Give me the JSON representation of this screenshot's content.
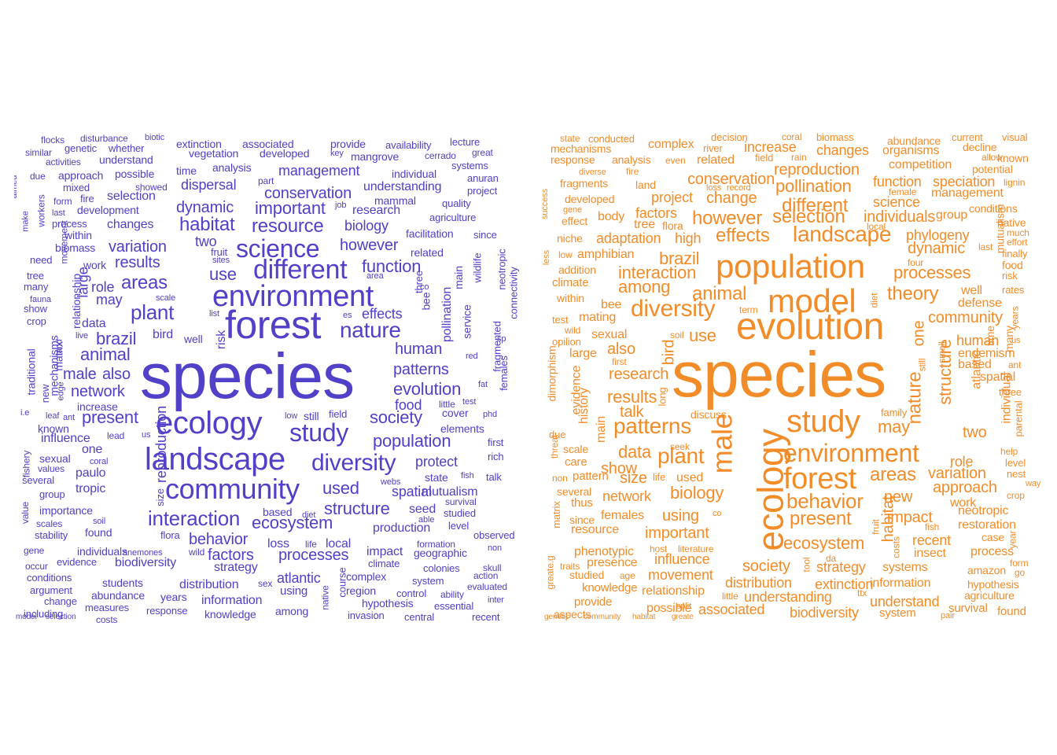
{
  "colors": {
    "left": "#5140c8",
    "right": "#f28c28",
    "background": "#ffffff"
  },
  "clouds": [
    {
      "name": "left",
      "words": [
        "species",
        "forest",
        "ecology",
        "landscape",
        "environment",
        "community",
        "model",
        "study",
        "different",
        "science",
        "interaction",
        "diversity",
        "nature",
        "ecosystem",
        "areas",
        "habitat",
        "plant",
        "resource",
        "population",
        "structure",
        "brazil",
        "used",
        "evolution",
        "animal",
        "important",
        "function",
        "society",
        "human",
        "variation",
        "patterns",
        "present",
        "processes",
        "factors",
        "behavior",
        "conservation",
        "however",
        "spatial",
        "network",
        "dynamic",
        "dispersal",
        "management",
        "use",
        "results",
        "effects",
        "male",
        "also",
        "may",
        "food",
        "impact",
        "production",
        "mutualism",
        "protect",
        "atlantic",
        "distribution",
        "information",
        "reproduction",
        "biology",
        "research",
        "local",
        "biodiversity",
        "changes",
        "selection",
        "development",
        "seed",
        "paulo",
        "tropic",
        "state",
        "understanding",
        "large",
        "loss",
        "based",
        "strategy",
        "two",
        "one",
        "mammal",
        "influence",
        "known",
        "complex",
        "related",
        "pollination",
        "service",
        "cover",
        "elements",
        "data",
        "role",
        "bird",
        "relationship",
        "mechanisms",
        "matrix",
        "traditional",
        "provide",
        "developed",
        "analysis",
        "vegetation",
        "extinction",
        "associated",
        "availability",
        "lecture",
        "mangrove",
        "individual",
        "cerrado",
        "systems",
        "great",
        "anuran",
        "project",
        "agriculture",
        "since",
        "facilitation",
        "quality",
        "wildlife",
        "neotropic",
        "connectivity",
        "fragmented",
        "females",
        "first",
        "rich",
        "talk",
        "fish",
        "survival",
        "studied",
        "level",
        "observed",
        "non",
        "action",
        "skull",
        "evaluated",
        "inter",
        "recent",
        "central",
        "essential",
        "ability",
        "control",
        "system",
        "region",
        "hypothesis",
        "invasion",
        "climate",
        "colonies",
        "geographic",
        "formation",
        "course",
        "native",
        "among",
        "knowledge",
        "years",
        "response",
        "measures",
        "abundance",
        "students",
        "costs",
        "change",
        "including",
        "argument",
        "conditions",
        "occur",
        "gene",
        "evidence",
        "individuals",
        "anemones",
        "wild",
        "flora",
        "sex",
        "using",
        "fishery",
        "values",
        "several",
        "group",
        "value",
        "importance",
        "scales",
        "soil",
        "stability",
        "found",
        "coral",
        "sexual",
        "us",
        "lead",
        "i.e",
        "leaf",
        "ant",
        "edge",
        "new",
        "increase",
        "size",
        "land",
        "fauna",
        "crop",
        "show",
        "many",
        "tree",
        "need",
        "biomass",
        "within",
        "process",
        "form",
        "last",
        "mixed",
        "fire",
        "approach",
        "activities",
        "similar",
        "flocks",
        "genetic",
        "disturbance",
        "biotic",
        "whether",
        "understand",
        "possible",
        "showed",
        "selection",
        "time",
        "part",
        "key",
        "job",
        "area",
        "bee",
        "three",
        "co",
        "main",
        "es",
        "webs",
        "able",
        "diet",
        "life",
        "list",
        "sites",
        "fruit",
        "well",
        "risk",
        "still",
        "field",
        "little",
        "test",
        "low",
        "red",
        "fat",
        "phd",
        "sp",
        "scale",
        "live",
        "aimed",
        "due",
        "workers",
        "make",
        "movement",
        "work"
      ]
    },
    {
      "name": "right",
      "words": [
        "species",
        "evolution",
        "population",
        "model",
        "ecology",
        "study",
        "forest",
        "male",
        "environment",
        "diversity",
        "landscape",
        "patterns",
        "behavior",
        "selection",
        "different",
        "plant",
        "nature",
        "effects",
        "however",
        "animal",
        "theory",
        "change",
        "pollination",
        "conservation",
        "reproduction",
        "interaction",
        "among",
        "structure",
        "increase",
        "changes",
        "research",
        "dynamic",
        "processes",
        "community",
        "biology",
        "present",
        "ecosystem",
        "areas",
        "brazil",
        "habitat",
        "individuals",
        "science",
        "variation",
        "approach",
        "function",
        "speciation",
        "management",
        "adaptation",
        "high",
        "results",
        "use",
        "bird",
        "genetic",
        "two",
        "data",
        "society",
        "strategy",
        "network",
        "size",
        "impact",
        "important",
        "influence",
        "movement",
        "distribution",
        "extinction",
        "information",
        "relationship",
        "understanding",
        "biodiversity",
        "understand",
        "system",
        "associated",
        "possible",
        "provide",
        "knowledge",
        "studied",
        "presence",
        "phenotypic",
        "females",
        "using",
        "resource",
        "since",
        "thus",
        "several",
        "pattern",
        "non",
        "care",
        "scale",
        "due",
        "main",
        "history",
        "evidence",
        "dimorphism",
        "threat",
        "matrix",
        "greate.g",
        "aspects",
        "age",
        "split",
        "host",
        "literature",
        "little",
        "ttx",
        "pair",
        "found",
        "survival",
        "agriculture",
        "hypothesis",
        "amazon",
        "go",
        "form",
        "year",
        "crop",
        "nest",
        "way",
        "help",
        "level",
        "parental",
        "three",
        "spatial",
        "ant",
        "based",
        "endemism",
        "human",
        "us",
        "years",
        "community",
        "defense",
        "well",
        "rates",
        "risk",
        "food",
        "finally",
        "effort",
        "much",
        "native",
        "mutualism",
        "phylogeny",
        "last",
        "conditions",
        "group",
        "lignin",
        "potential",
        "known",
        "allow",
        "decline",
        "visual",
        "current",
        "abundance",
        "organisms",
        "competition",
        "biomass",
        "coral",
        "rain",
        "field",
        "decision",
        "state",
        "conducted",
        "mechanisms",
        "response",
        "analysis",
        "complex",
        "river",
        "even",
        "related",
        "fire",
        "diverse",
        "fragments",
        "land",
        "project",
        "factors",
        "loss",
        "record",
        "developed",
        "gene",
        "success",
        "effect",
        "body",
        "tree",
        "flora",
        "niche",
        "low",
        "less",
        "amphibian",
        "addition",
        "climate",
        "within",
        "bee",
        "test",
        "mating",
        "wild",
        "opilion",
        "large",
        "sexual",
        "also",
        "first",
        "soil",
        "term",
        "diet",
        "one",
        "still",
        "small",
        "long",
        "discuss",
        "family",
        "may",
        "new",
        "restoration",
        "case",
        "process",
        "neotropic",
        "work",
        "role",
        "recent",
        "insect",
        "systems",
        "fruit",
        "habitat",
        "costs",
        "fish",
        "da",
        "tool",
        "co",
        "seek",
        "four",
        "local",
        "female",
        "individual",
        "time",
        "atlantic",
        "many",
        "show",
        "talk",
        "used",
        "life",
        "traits",
        "greate"
      ]
    }
  ]
}
